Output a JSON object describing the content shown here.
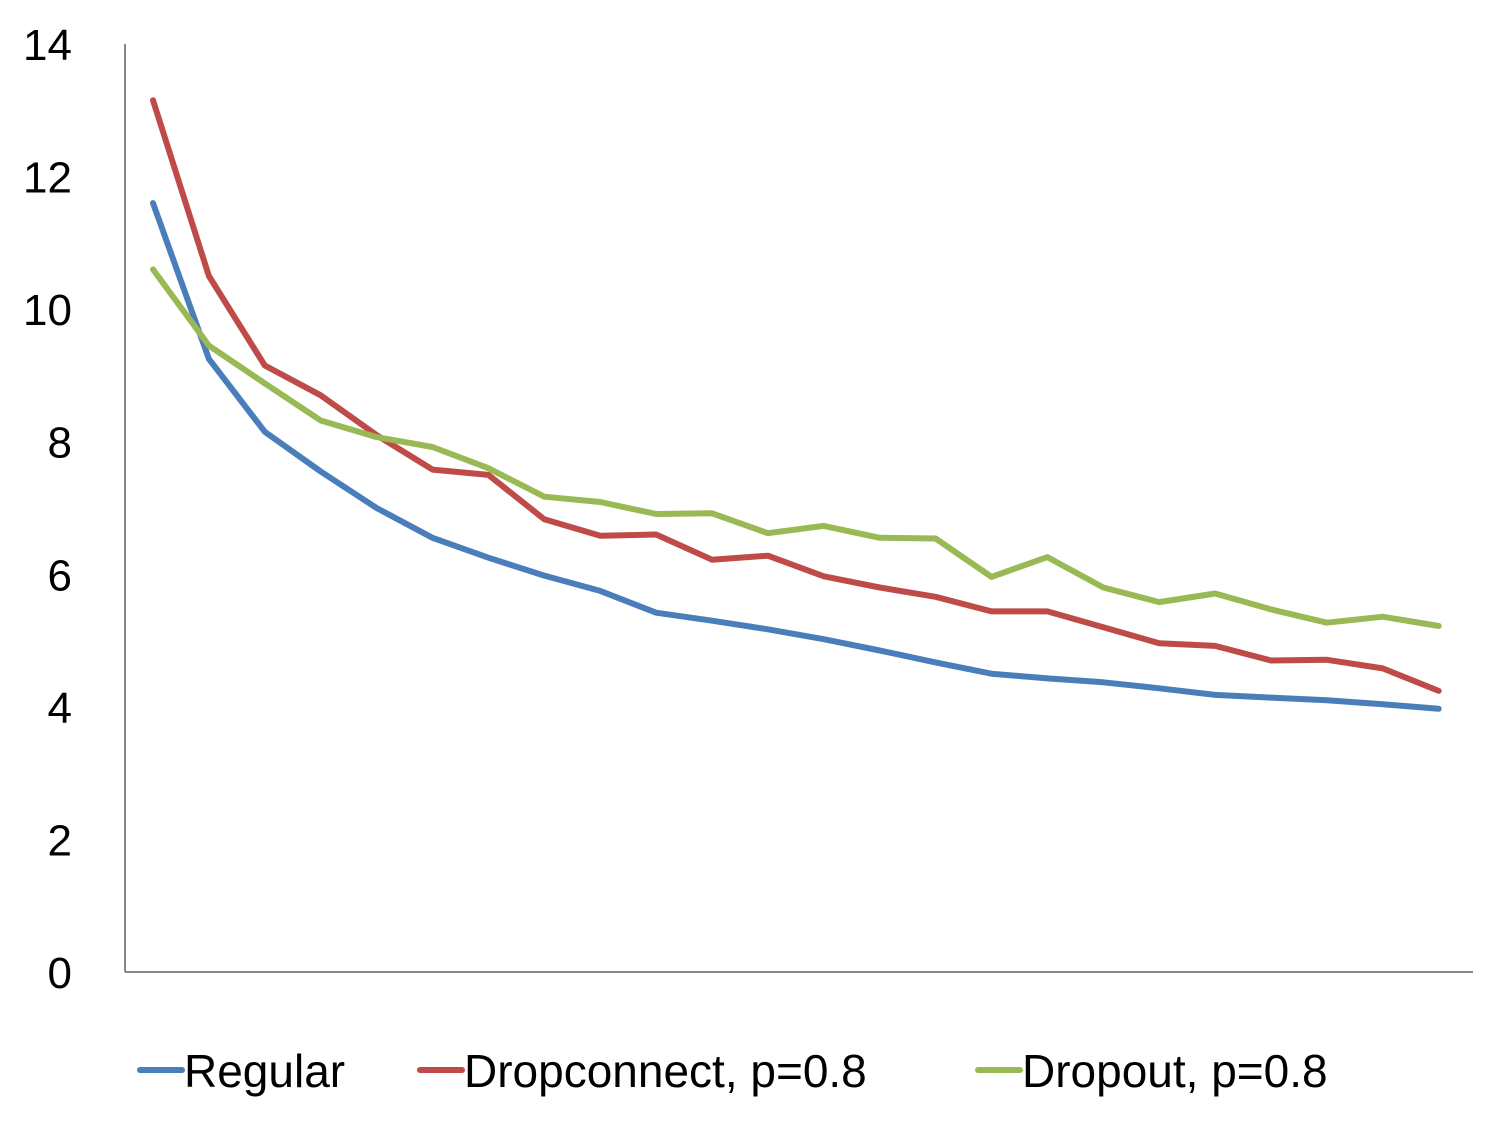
{
  "chart_data": {
    "type": "line",
    "title": "",
    "xlabel": "",
    "ylabel": "",
    "ylim": [
      0,
      14
    ],
    "yticks": [
      "0",
      "2",
      "4",
      "6",
      "8",
      "10",
      "12",
      "14"
    ],
    "grid": false,
    "legend_position": "bottom",
    "x": [
      1,
      2,
      3,
      4,
      5,
      6,
      7,
      8,
      9,
      10,
      11,
      12,
      13,
      14,
      15,
      16,
      17,
      18,
      19,
      20,
      21,
      22,
      23,
      24,
      25
    ],
    "series": [
      {
        "name": "Regular",
        "color": "#4a7ebb",
        "values": [
          11.6,
          9.25,
          8.15,
          7.55,
          7.0,
          6.55,
          6.25,
          5.98,
          5.75,
          5.42,
          5.3,
          5.17,
          5.02,
          4.85,
          4.67,
          4.5,
          4.43,
          4.37,
          4.28,
          4.18,
          4.14,
          4.1,
          4.04,
          3.97,
          null
        ]
      },
      {
        "name": "Dropconnect, p=0.8",
        "color": "#be4b48",
        "values": [
          13.15,
          10.5,
          9.15,
          8.7,
          8.1,
          7.58,
          7.5,
          6.83,
          6.58,
          6.6,
          6.22,
          6.28,
          5.97,
          5.8,
          5.66,
          5.44,
          5.44,
          5.2,
          4.96,
          4.92,
          4.7,
          4.71,
          4.58,
          4.24,
          null
        ]
      },
      {
        "name": "Dropout, p=0.8",
        "color": "#98b954",
        "values": [
          10.6,
          9.45,
          8.88,
          8.32,
          8.07,
          7.92,
          7.6,
          7.17,
          7.09,
          6.91,
          6.92,
          6.62,
          6.73,
          6.55,
          6.54,
          5.96,
          6.26,
          5.8,
          5.58,
          5.71,
          5.47,
          5.27,
          5.36,
          5.22,
          null
        ]
      }
    ]
  }
}
